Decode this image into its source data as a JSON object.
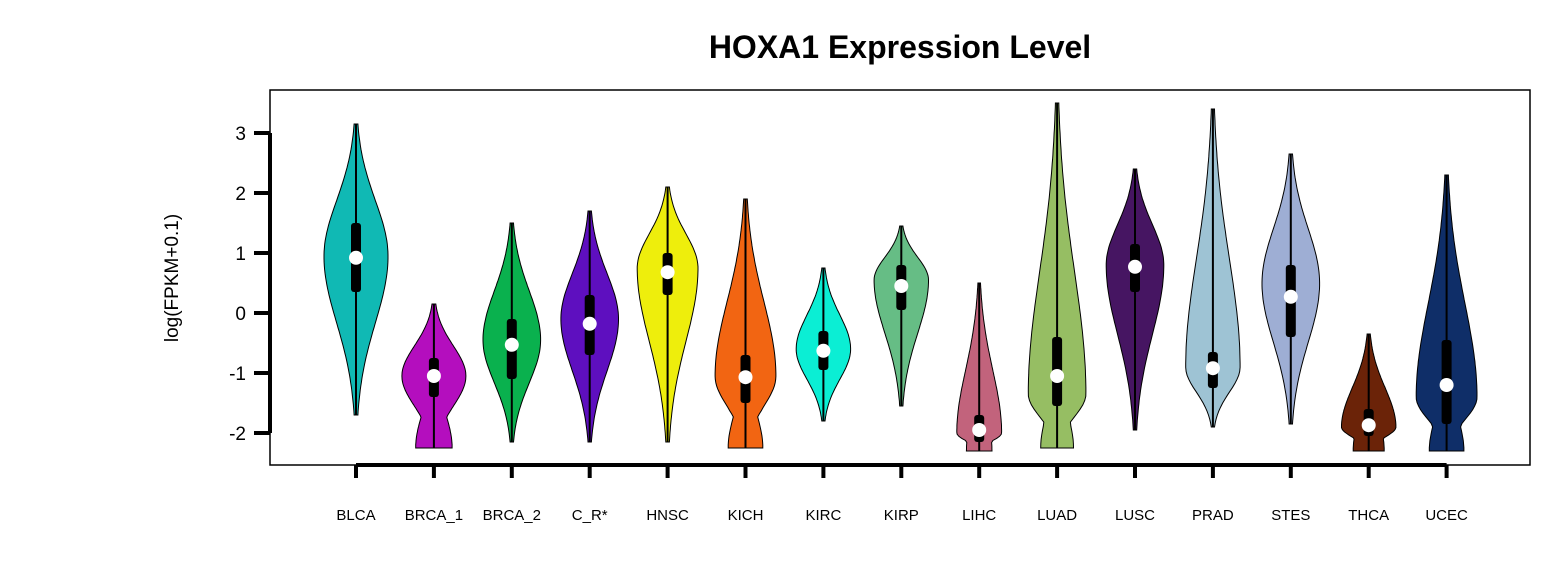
{
  "chart_data": {
    "type": "violin",
    "title": "HOXA1 Expression Level",
    "ylabel": "log(FPKM+0.1)",
    "xlabel": "",
    "ylim": [
      -2.5,
      3.0
    ],
    "yticks": [
      3,
      2,
      1,
      0,
      -1,
      -2
    ],
    "ytick_labels": [
      "3",
      "2",
      "1",
      "0",
      "-1",
      "-2"
    ],
    "legend": "none",
    "grid": false,
    "categories": [
      {
        "label": "BLCA",
        "color": "#10B9B4",
        "min": -1.7,
        "max": 3.15,
        "q1": 0.35,
        "median": 0.92,
        "q3": 1.5,
        "peak": 0.95,
        "width": 1.0
      },
      {
        "label": "BRCA_1",
        "color": "#B40EBE",
        "min": -2.25,
        "max": 0.15,
        "q1": -1.4,
        "median": -1.05,
        "q3": -0.75,
        "peak": -1.05,
        "width": 1.0
      },
      {
        "label": "BRCA_2",
        "color": "#0AB14E",
        "min": -2.15,
        "max": 1.5,
        "q1": -1.1,
        "median": -0.53,
        "q3": -0.1,
        "peak": -0.45,
        "width": 0.9
      },
      {
        "label": "C_R*",
        "color": "#5E0FBF",
        "min": -2.15,
        "max": 1.7,
        "q1": -0.7,
        "median": -0.18,
        "q3": 0.3,
        "peak": -0.1,
        "width": 0.9
      },
      {
        "label": "HNSC",
        "color": "#EEEE0C",
        "min": -2.15,
        "max": 2.1,
        "q1": 0.3,
        "median": 0.68,
        "q3": 1.0,
        "peak": 0.75,
        "width": 0.95
      },
      {
        "label": "KICH",
        "color": "#F26512",
        "min": -2.25,
        "max": 1.9,
        "q1": -1.5,
        "median": -1.07,
        "q3": -0.7,
        "peak": -1.05,
        "width": 0.95
      },
      {
        "label": "KIRC",
        "color": "#0BEED4",
        "min": -1.8,
        "max": 0.75,
        "q1": -0.95,
        "median": -0.63,
        "q3": -0.3,
        "peak": -0.6,
        "width": 0.85
      },
      {
        "label": "KIRP",
        "color": "#66BD85",
        "min": -1.55,
        "max": 1.45,
        "q1": 0.05,
        "median": 0.45,
        "q3": 0.8,
        "peak": 0.55,
        "width": 0.85
      },
      {
        "label": "LIHC",
        "color": "#C2637C",
        "min": -2.3,
        "max": 0.5,
        "q1": -2.15,
        "median": -1.95,
        "q3": -1.7,
        "peak": -2.0,
        "width": 0.7
      },
      {
        "label": "LUAD",
        "color": "#96BE63",
        "min": -2.25,
        "max": 3.5,
        "q1": -1.55,
        "median": -1.05,
        "q3": -0.4,
        "peak": -1.35,
        "width": 0.9
      },
      {
        "label": "LUSC",
        "color": "#461562",
        "min": -1.95,
        "max": 2.4,
        "q1": 0.35,
        "median": 0.77,
        "q3": 1.15,
        "peak": 0.8,
        "width": 0.9
      },
      {
        "label": "PRAD",
        "color": "#9EC3D4",
        "min": -1.9,
        "max": 3.4,
        "q1": -1.25,
        "median": -0.92,
        "q3": -0.65,
        "peak": -0.9,
        "width": 0.85
      },
      {
        "label": "STES",
        "color": "#9EAED4",
        "min": -1.85,
        "max": 2.65,
        "q1": -0.4,
        "median": 0.27,
        "q3": 0.8,
        "peak": 0.5,
        "width": 0.9
      },
      {
        "label": "THCA",
        "color": "#6B2308",
        "min": -2.3,
        "max": -0.35,
        "q1": -2.05,
        "median": -1.87,
        "q3": -1.6,
        "peak": -1.9,
        "width": 0.85
      },
      {
        "label": "UCEC",
        "color": "#0F2E68",
        "min": -2.3,
        "max": 2.3,
        "q1": -1.85,
        "median": -1.2,
        "q3": -0.45,
        "peak": -1.4,
        "width": 0.95
      }
    ]
  }
}
